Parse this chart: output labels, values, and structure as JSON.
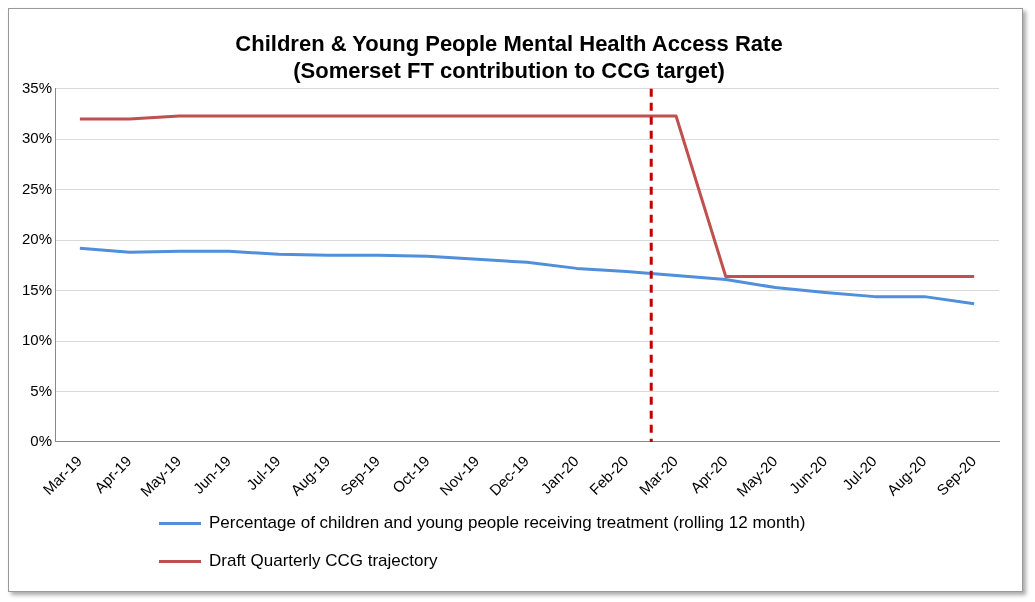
{
  "chart_data": {
    "type": "line",
    "title": "Children & Young People Mental Health Access Rate",
    "subtitle": "(Somerset FT contribution to CCG target)",
    "categories": [
      "Mar-19",
      "Apr-19",
      "May-19",
      "Jun-19",
      "Jul-19",
      "Aug-19",
      "Sep-19",
      "Oct-19",
      "Nov-19",
      "Dec-19",
      "Jan-20",
      "Feb-20",
      "Mar-20",
      "Apr-20",
      "May-20",
      "Jun-20",
      "Jul-20",
      "Aug-20",
      "Sep-20"
    ],
    "series": [
      {
        "name": "Percentage of children and young people receiving treatment (rolling 12 month)",
        "color": "#4f8fdb",
        "values": [
          19.2,
          18.8,
          18.9,
          18.9,
          18.6,
          18.5,
          18.5,
          18.4,
          18.1,
          17.8,
          17.2,
          16.9,
          16.5,
          16.1,
          15.3,
          14.8,
          14.4,
          14.4,
          13.7
        ]
      },
      {
        "name": "Draft Quarterly CCG trajectory",
        "color": "#c0504d",
        "values": [
          32.0,
          32.0,
          32.3,
          32.3,
          32.3,
          32.3,
          32.3,
          32.3,
          32.3,
          32.3,
          32.3,
          32.3,
          32.3,
          16.4,
          16.4,
          16.4,
          16.4,
          16.4,
          16.4
        ]
      }
    ],
    "ylim": [
      0,
      35
    ],
    "yticks": [
      {
        "value": 0,
        "label": "0%"
      },
      {
        "value": 5,
        "label": "5%"
      },
      {
        "value": 10,
        "label": "10%"
      },
      {
        "value": 15,
        "label": "15%"
      },
      {
        "value": 20,
        "label": "20%"
      },
      {
        "value": 25,
        "label": "25%"
      },
      {
        "value": 30,
        "label": "30%"
      },
      {
        "value": 35,
        "label": "35%"
      }
    ],
    "ref_lines": [
      {
        "axis": "x",
        "value": "Mar-20",
        "color": "#c00000",
        "line_style": "dashed"
      }
    ],
    "grid": "y",
    "legend": "bottom",
    "marker": "none",
    "line_style": "solid"
  }
}
